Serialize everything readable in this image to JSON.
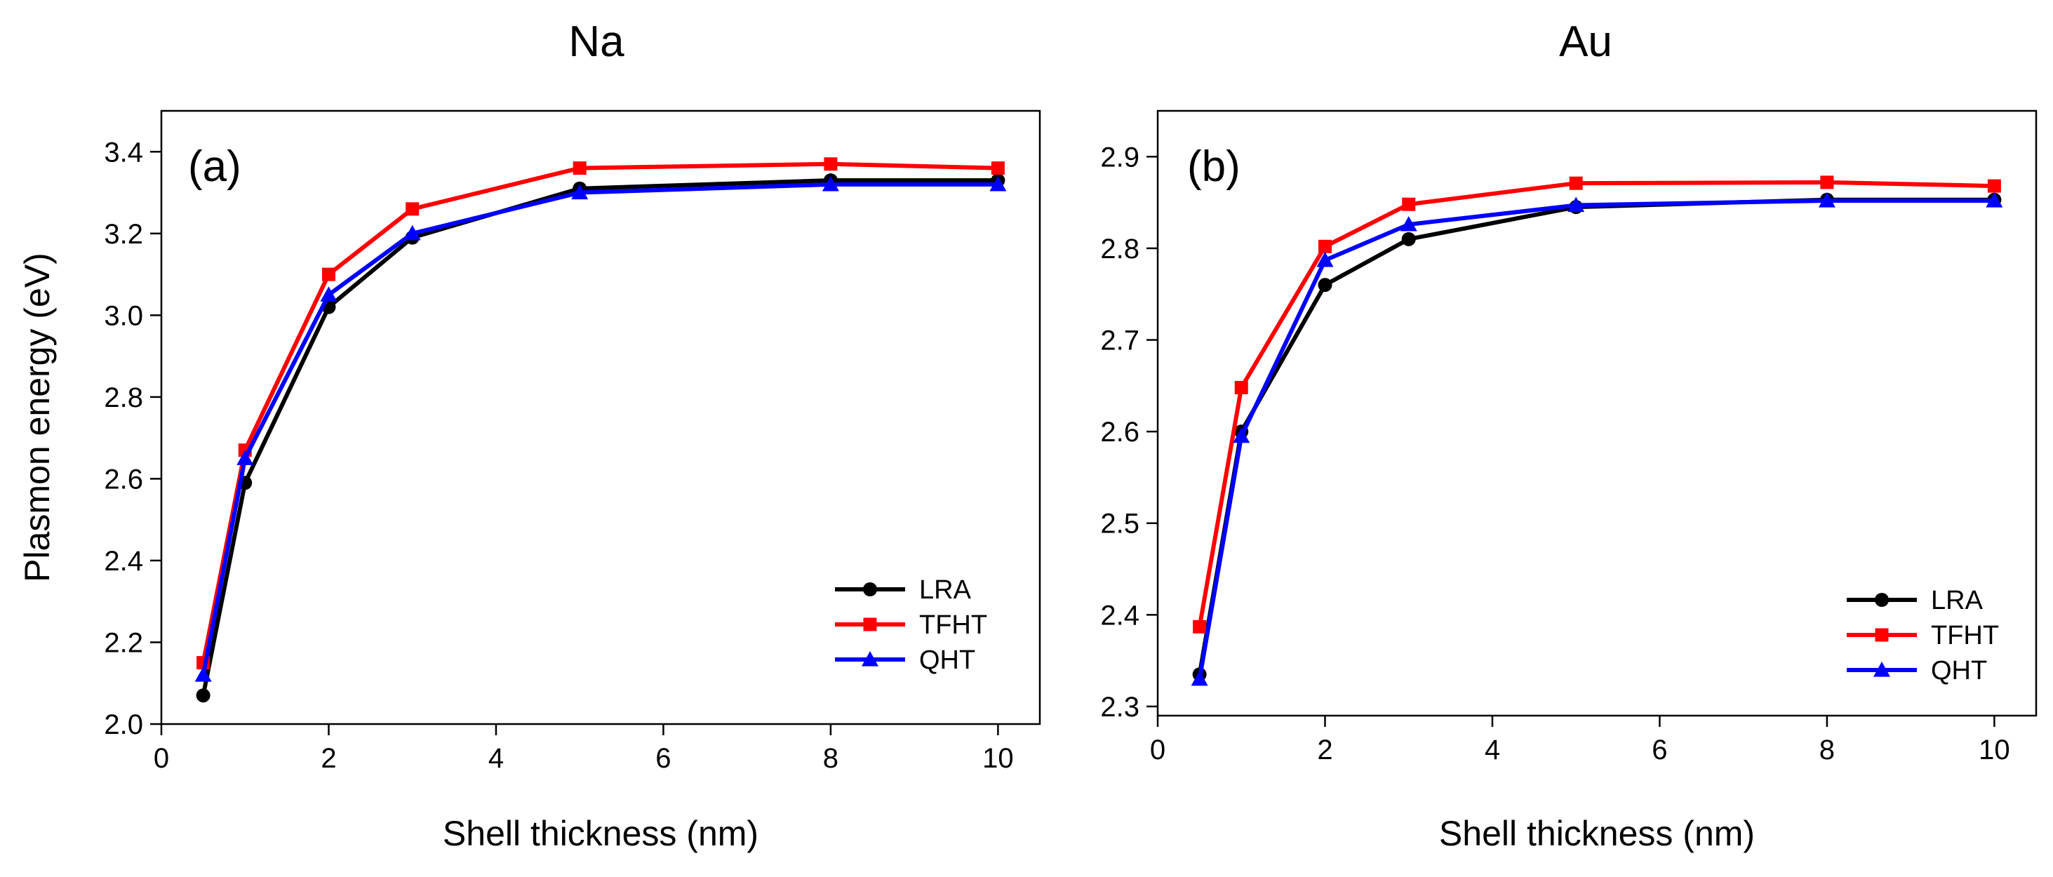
{
  "chart_data": [
    {
      "type": "line",
      "title": "Na",
      "panel_label": "(a)",
      "xlabel": "Shell thickness (nm)",
      "ylabel": "Plasmon energy (eV)",
      "xlim": [
        0,
        10.5
      ],
      "ylim": [
        2.0,
        3.5
      ],
      "xticks": [
        0,
        2,
        4,
        6,
        8,
        10
      ],
      "xtick_labels": [
        "0",
        "2",
        "4",
        "6",
        "8",
        "10"
      ],
      "yticks": [
        2.0,
        2.2,
        2.4,
        2.6,
        2.8,
        3.0,
        3.2,
        3.4
      ],
      "ytick_labels": [
        "2.0",
        "2.2",
        "2.4",
        "2.6",
        "2.8",
        "3.0",
        "3.2",
        "3.4"
      ],
      "grid": false,
      "legend_position": "bottom-right",
      "x": [
        0.5,
        1,
        2,
        3,
        5,
        8,
        10
      ],
      "series": [
        {
          "name": "LRA",
          "color": "#000000",
          "marker": "circle",
          "values": [
            2.07,
            2.59,
            3.02,
            3.19,
            3.31,
            3.33,
            3.33
          ]
        },
        {
          "name": "TFHT",
          "color": "#ff0000",
          "marker": "square",
          "values": [
            2.15,
            2.67,
            3.1,
            3.26,
            3.36,
            3.37,
            3.36
          ]
        },
        {
          "name": "QHT",
          "color": "#0000ff",
          "marker": "triangle",
          "values": [
            2.12,
            2.65,
            3.05,
            3.2,
            3.3,
            3.32,
            3.32
          ]
        }
      ]
    },
    {
      "type": "line",
      "title": "Au",
      "panel_label": "(b)",
      "xlabel": "Shell thickness (nm)",
      "ylabel": "",
      "xlim": [
        0,
        10.5
      ],
      "ylim": [
        2.29,
        2.95
      ],
      "xticks": [
        0,
        2,
        4,
        6,
        8,
        10
      ],
      "xtick_labels": [
        "0",
        "2",
        "4",
        "6",
        "8",
        "10"
      ],
      "yticks": [
        2.3,
        2.4,
        2.5,
        2.6,
        2.7,
        2.8,
        2.9
      ],
      "ytick_labels": [
        "2.3",
        "2.4",
        "2.5",
        "2.6",
        "2.7",
        "2.8",
        "2.9"
      ],
      "grid": false,
      "legend_position": "bottom-right",
      "x": [
        0.5,
        1,
        2,
        3,
        5,
        8,
        10
      ],
      "series": [
        {
          "name": "LRA",
          "color": "#000000",
          "marker": "circle",
          "values": [
            2.335,
            2.6,
            2.76,
            2.81,
            2.845,
            2.853,
            2.853
          ]
        },
        {
          "name": "TFHT",
          "color": "#ff0000",
          "marker": "square",
          "values": [
            2.387,
            2.648,
            2.802,
            2.848,
            2.871,
            2.872,
            2.868
          ]
        },
        {
          "name": "QHT",
          "color": "#0000ff",
          "marker": "triangle",
          "values": [
            2.33,
            2.595,
            2.787,
            2.826,
            2.847,
            2.852,
            2.852
          ]
        }
      ]
    }
  ]
}
